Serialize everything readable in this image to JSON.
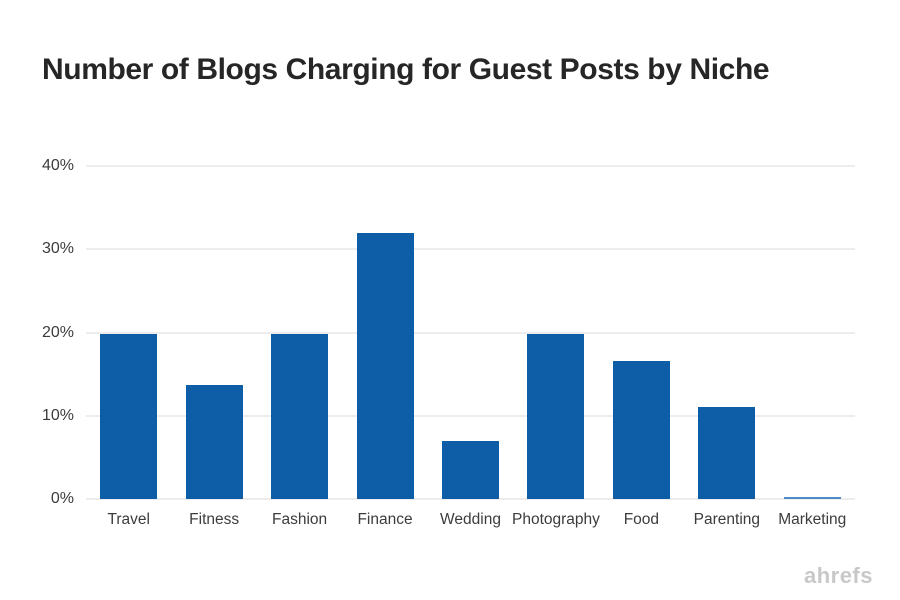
{
  "chart_data": {
    "type": "bar",
    "title": "Number of Blogs Charging for Guest Posts by Niche",
    "categories": [
      "Travel",
      "Fitness",
      "Fashion",
      "Finance",
      "Wedding",
      "Photography",
      "Food",
      "Parenting",
      "Marketing"
    ],
    "values": [
      19.8,
      13.7,
      19.8,
      32,
      7,
      19.8,
      16.6,
      11,
      0.2
    ],
    "unit": "%",
    "xlabel": "",
    "ylabel": "",
    "ylim": [
      0,
      40
    ],
    "yticks": [
      0,
      10,
      20,
      30,
      40
    ],
    "ytick_labels": [
      "0%",
      "10%",
      "20%",
      "30%",
      "40%"
    ],
    "grid": true,
    "legend": false,
    "bar_color": "#0d5ea6",
    "thin_bar_color": "#4d8bc4",
    "gridline_color": "#ededed",
    "title_color": "#262626",
    "axis_label_color": "#3c3c3c"
  },
  "footer": {
    "logo_text": "ahrefs",
    "logo_color": "#c8c8c8"
  }
}
